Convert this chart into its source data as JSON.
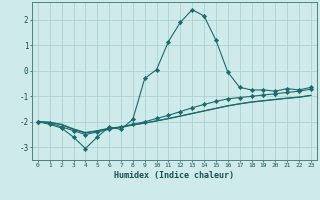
{
  "xlabel": "Humidex (Indice chaleur)",
  "background_color": "#ceeaea",
  "grid_color": "#a8cccc",
  "line_color": "#1a6b6b",
  "x_data": [
    0,
    1,
    2,
    3,
    4,
    5,
    6,
    7,
    8,
    9,
    10,
    11,
    12,
    13,
    14,
    15,
    16,
    17,
    18,
    19,
    20,
    21,
    22,
    23
  ],
  "series1": [
    -2.0,
    -2.1,
    -2.25,
    -2.6,
    -3.05,
    -2.6,
    -2.2,
    -2.3,
    -1.9,
    -0.3,
    0.05,
    1.15,
    1.9,
    2.4,
    2.15,
    1.2,
    -0.05,
    -0.65,
    -0.75,
    -0.75,
    -0.8,
    -0.7,
    -0.75,
    -0.65
  ],
  "series2": [
    -2.0,
    -2.05,
    -2.2,
    -2.35,
    -2.5,
    -2.4,
    -2.3,
    -2.2,
    -2.1,
    -2.0,
    -1.87,
    -1.75,
    -1.6,
    -1.45,
    -1.32,
    -1.2,
    -1.1,
    -1.05,
    -1.0,
    -0.95,
    -0.9,
    -0.85,
    -0.8,
    -0.72
  ],
  "series3": [
    -2.0,
    -2.02,
    -2.1,
    -2.28,
    -2.42,
    -2.35,
    -2.25,
    -2.2,
    -2.12,
    -2.05,
    -1.97,
    -1.88,
    -1.78,
    -1.68,
    -1.58,
    -1.48,
    -1.38,
    -1.3,
    -1.23,
    -1.18,
    -1.13,
    -1.08,
    -1.04,
    -0.97
  ],
  "series4": [
    -2.0,
    -2.02,
    -2.12,
    -2.3,
    -2.44,
    -2.36,
    -2.27,
    -2.22,
    -2.13,
    -2.05,
    -1.96,
    -1.87,
    -1.77,
    -1.67,
    -1.57,
    -1.47,
    -1.37,
    -1.29,
    -1.22,
    -1.17,
    -1.12,
    -1.07,
    -1.03,
    -0.96
  ],
  "xlim": [
    -0.5,
    23.5
  ],
  "ylim": [
    -3.5,
    2.7
  ],
  "yticks": [
    -3,
    -2,
    -1,
    0,
    1,
    2
  ]
}
